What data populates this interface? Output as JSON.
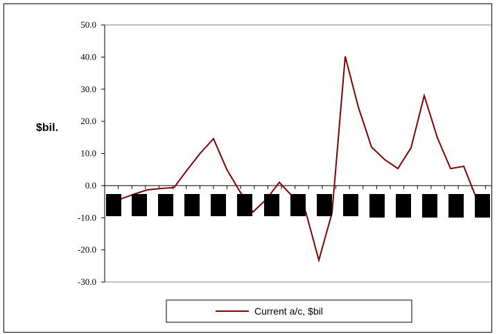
{
  "chart_data": {
    "type": "line",
    "title": "",
    "xlabel": "",
    "ylabel": "$bil.",
    "ylim": [
      -30,
      50
    ],
    "yticks": [
      "50.0",
      "40.0",
      "30.0",
      "20.0",
      "10.0",
      "0.0",
      "-10.0",
      "-20.0",
      "-30.0"
    ],
    "ytick_values": [
      50,
      40,
      30,
      20,
      10,
      0,
      -10,
      -20,
      -30
    ],
    "grid": false,
    "legend_placement": "bottom",
    "series": [
      {
        "name": "Current a/c, $bil",
        "color": "#7f0000",
        "values": [
          -4.6,
          -4.1,
          -2.6,
          -1.3,
          -0.9,
          -0.6,
          4.9,
          10.1,
          14.6,
          5.1,
          -1.8,
          -8.2,
          -4.3,
          1.0,
          -3.4,
          -8.1,
          -23.2,
          -8.5,
          40.2,
          24.4,
          12.0,
          8.1,
          5.3,
          11.8,
          28.0,
          14.9,
          5.3,
          6.0,
          -4.3
        ]
      }
    ],
    "occlusion_color": "#000000"
  }
}
